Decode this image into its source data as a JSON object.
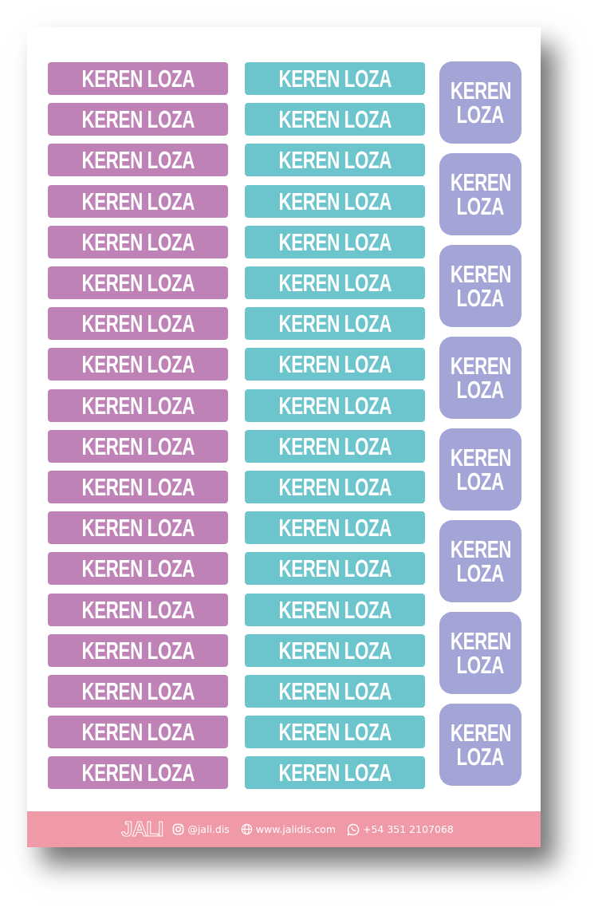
{
  "sheet": {
    "colors": {
      "purple": "#be82b7",
      "teal": "#6cc5cc",
      "lavender": "#a2a5d5",
      "footer": "#f09aa7"
    },
    "column1": [
      "KEREN LOZA",
      "KEREN LOZA",
      "KEREN LOZA",
      "KEREN LOZA",
      "KEREN LOZA",
      "KEREN LOZA",
      "KEREN LOZA",
      "KEREN LOZA",
      "KEREN LOZA",
      "KEREN LOZA",
      "KEREN LOZA",
      "KEREN LOZA",
      "KEREN LOZA",
      "KEREN LOZA",
      "KEREN LOZA",
      "KEREN LOZA",
      "KEREN LOZA",
      "KEREN LOZA"
    ],
    "column2": [
      "KEREN LOZA",
      "KEREN LOZA",
      "KEREN LOZA",
      "KEREN LOZA",
      "KEREN LOZA",
      "KEREN LOZA",
      "KEREN LOZA",
      "KEREN LOZA",
      "KEREN LOZA",
      "KEREN LOZA",
      "KEREN LOZA",
      "KEREN LOZA",
      "KEREN LOZA",
      "KEREN LOZA",
      "KEREN LOZA",
      "KEREN LOZA",
      "KEREN LOZA",
      "KEREN LOZA"
    ],
    "squares": [
      [
        "KEREN",
        "LOZA"
      ],
      [
        "KEREN",
        "LOZA"
      ],
      [
        "KEREN",
        "LOZA"
      ],
      [
        "KEREN",
        "LOZA"
      ],
      [
        "KEREN",
        "LOZA"
      ],
      [
        "KEREN",
        "LOZA"
      ],
      [
        "KEREN",
        "LOZA"
      ],
      [
        "KEREN",
        "LOZA"
      ]
    ]
  },
  "footer": {
    "logo": "JALI",
    "instagram": {
      "icon": "instagram-icon",
      "text": "@jali.dis"
    },
    "website": {
      "icon": "globe-icon",
      "text": "www.jalidis.com"
    },
    "whatsapp": {
      "icon": "whatsapp-icon",
      "text": "+54 351 2107068"
    }
  }
}
